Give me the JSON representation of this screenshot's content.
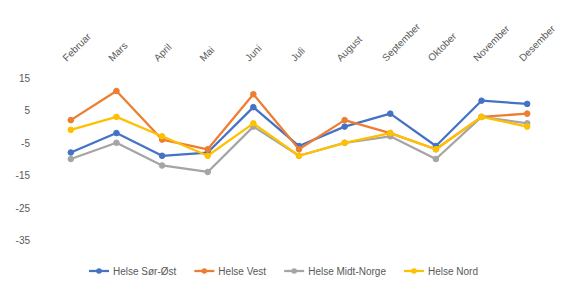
{
  "chart_data": {
    "type": "line",
    "categories": [
      "Februar",
      "Mars",
      "April",
      "Mai",
      "Juni",
      "Juli",
      "August",
      "September",
      "Oktober",
      "November",
      "Desember"
    ],
    "series": [
      {
        "name": "Helse Sør-Øst",
        "color": "#4472c4",
        "values": [
          -8,
          -2,
          -9,
          -8,
          6,
          -6,
          0,
          4,
          -6,
          8,
          7
        ]
      },
      {
        "name": "Helse Vest",
        "color": "#ed7d31",
        "values": [
          2,
          11,
          -4,
          -7,
          10,
          -7,
          2,
          -2,
          -7,
          3,
          4
        ]
      },
      {
        "name": "Helse Midt-Norge",
        "color": "#a5a5a5",
        "values": [
          -10,
          -5,
          -12,
          -14,
          0,
          -9,
          -5,
          -3,
          -10,
          3,
          1
        ]
      },
      {
        "name": "Helse Nord",
        "color": "#ffc000",
        "values": [
          -1,
          3,
          -3,
          -9,
          1,
          -9,
          -5,
          -2,
          -7,
          3,
          0
        ]
      }
    ],
    "ylim": [
      -35,
      15
    ],
    "yticks": [
      15,
      5,
      -5,
      -15,
      -25,
      -35
    ],
    "grid": false,
    "legend": "bottom",
    "marker": "circle"
  }
}
